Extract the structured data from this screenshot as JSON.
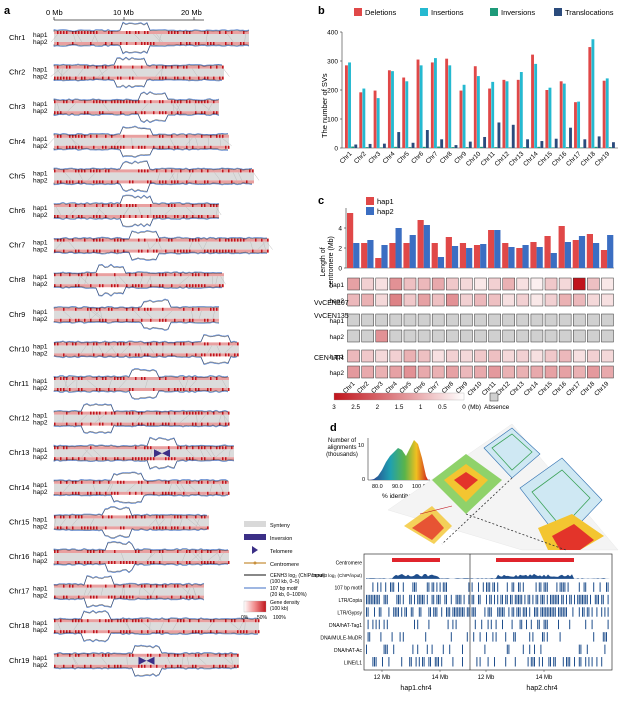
{
  "panel_a": {
    "label": "a",
    "scale": [
      "0 Mb",
      "10 Mb",
      "20 Mb"
    ],
    "hap_labels": [
      "hap1",
      "hap2"
    ],
    "chromosomes": [
      "Chr1",
      "Chr2",
      "Chr3",
      "Chr4",
      "Chr5",
      "Chr6",
      "Chr7",
      "Chr8",
      "Chr9",
      "Chr10",
      "Chr11",
      "Chr12",
      "Chr13",
      "Chr14",
      "Chr15",
      "Chr16",
      "Chr17",
      "Chr18",
      "Chr19"
    ],
    "legend": {
      "synteny": "Synteny",
      "inversion": "Inversion",
      "telomere": "Telomere",
      "centromere": "Centromere",
      "chip": "CENH3 log₂ (ChIP/input) (100 kb, 0–5)",
      "motif": "107 bp motif (20 kb, 0–100%)",
      "gene_density": "Gene density (100 kb)",
      "gene_ticks": [
        "0%",
        "50%",
        "100%"
      ]
    },
    "colors": {
      "synteny": "#d9d9d9",
      "inversion": "#3b2f86",
      "gene_low": "#ffffff",
      "gene_high": "#c0141c",
      "chip": "#111111",
      "motif": "#3f6fc4"
    }
  },
  "panel_b": {
    "label": "b",
    "chart_data": {
      "type": "bar",
      "ylabel": "The number of SVs",
      "ylim": [
        0,
        400
      ],
      "yticks": [
        "0",
        "100",
        "200",
        "300",
        "400"
      ],
      "categories": [
        "Chr1",
        "Chr2",
        "Chr3",
        "Chr4",
        "Chr5",
        "Chr6",
        "Chr7",
        "Chr8",
        "Chr9",
        "Chr10",
        "Chr11",
        "Chr12",
        "Chr13",
        "Chr14",
        "Chr15",
        "Chr16",
        "Chr17",
        "Chr18",
        "Chr19"
      ],
      "series": [
        {
          "name": "Deletions",
          "color": "#e04848",
          "values": [
            285,
            192,
            198,
            268,
            243,
            305,
            295,
            308,
            198,
            282,
            205,
            235,
            235,
            322,
            200,
            230,
            158,
            348,
            232
          ]
        },
        {
          "name": "Insertions",
          "color": "#25b9d0",
          "values": [
            295,
            205,
            172,
            265,
            230,
            285,
            310,
            285,
            218,
            248,
            228,
            230,
            262,
            290,
            208,
            222,
            160,
            375,
            240
          ]
        },
        {
          "name": "Inversions",
          "color": "#1d9a79",
          "values": [
            5,
            3,
            2,
            4,
            3,
            4,
            5,
            3,
            3,
            4,
            3,
            2,
            3,
            4,
            2,
            3,
            2,
            4,
            3
          ]
        },
        {
          "name": "Translocations",
          "color": "#2b4b7c",
          "values": [
            12,
            14,
            15,
            55,
            18,
            62,
            30,
            10,
            22,
            38,
            88,
            80,
            30,
            24,
            32,
            70,
            30,
            40,
            20
          ]
        }
      ]
    }
  },
  "panel_c": {
    "label": "c",
    "chart_data": {
      "type": "bar",
      "ylabel": "Length of centromere (Mb)",
      "ylim": [
        0,
        6
      ],
      "yticks": [
        "0",
        "2",
        "4"
      ],
      "categories": [
        "Chr1",
        "Chr2",
        "Chr3",
        "Chr4",
        "Chr5",
        "Chr6",
        "Chr7",
        "Chr8",
        "Chr9",
        "Chr10",
        "Chr11",
        "Chr12",
        "Chr13",
        "Chr14",
        "Chr15",
        "Chr16",
        "Chr17",
        "Chr18",
        "Chr19"
      ],
      "series": [
        {
          "name": "hap1",
          "color": "#e04848",
          "values": [
            5.5,
            2.5,
            1.0,
            2.5,
            2.5,
            4.8,
            2.5,
            3.1,
            2.5,
            2.3,
            3.8,
            2.5,
            2.0,
            2.6,
            3.2,
            4.2,
            2.8,
            3.4,
            1.8
          ]
        },
        {
          "name": "hap2",
          "color": "#3b6ec2",
          "values": [
            2.5,
            2.8,
            2.3,
            4.0,
            3.3,
            4.3,
            1.1,
            2.2,
            2.0,
            2.4,
            3.8,
            2.1,
            2.3,
            2.1,
            1.5,
            2.6,
            3.2,
            2.5,
            3.3
          ]
        }
      ]
    },
    "heatmap": {
      "type": "heatmap",
      "rows": [
        {
          "group": "VvCEN107",
          "hap": "hap1",
          "values": [
            1.2,
            0.6,
            0.4,
            1.4,
            0.8,
            0.9,
            1.1,
            0.7,
            0.5,
            0.3,
            0.6,
            1.0,
            0.4,
            0.2,
            0.7,
            0.5,
            3.0,
            0.8,
            0.3
          ]
        },
        {
          "group": "VvCEN107",
          "hap": "hap2",
          "values": [
            0.9,
            1.0,
            0.5,
            1.6,
            0.7,
            1.2,
            0.8,
            1.4,
            0.6,
            0.9,
            0.8,
            0.4,
            0.6,
            0.3,
            0.6,
            1.0,
            0.9,
            0.5,
            0.4
          ]
        },
        {
          "group": "VvCEN135",
          "hap": "hap1",
          "values": [
            null,
            null,
            null,
            null,
            null,
            null,
            null,
            null,
            null,
            null,
            null,
            null,
            null,
            null,
            null,
            null,
            null,
            null,
            null
          ]
        },
        {
          "group": "VvCEN135",
          "hap": "hap2",
          "values": [
            null,
            null,
            1.4,
            null,
            null,
            null,
            null,
            null,
            null,
            null,
            null,
            null,
            null,
            null,
            null,
            null,
            null,
            null,
            null
          ]
        },
        {
          "group": "CEN-LTR",
          "hap": "hap1",
          "values": [
            0.9,
            0.7,
            0.5,
            0.6,
            1.0,
            0.8,
            0.4,
            0.6,
            0.5,
            0.7,
            0.8,
            0.5,
            0.6,
            0.4,
            0.7,
            0.9,
            0.4,
            0.6,
            0.5
          ]
        },
        {
          "group": "CEN-LTR",
          "hap": "hap2",
          "values": [
            1.3,
            1.1,
            1.0,
            1.2,
            1.4,
            1.1,
            1.0,
            1.2,
            0.9,
            1.1,
            1.3,
            1.0,
            1.0,
            1.1,
            1.2,
            1.2,
            1.0,
            1.3,
            1.1
          ]
        }
      ],
      "groups": [
        "VvCEN107",
        "VvCEN135",
        "CEN-LTR"
      ],
      "scale_ticks": [
        "3",
        "2.5",
        "2",
        "1.5",
        "1",
        "0.5",
        "0"
      ],
      "scale_unit": "(Mb)",
      "absence_label": "Absence",
      "absence_color": "#d0d0d0"
    }
  },
  "panel_d": {
    "label": "d",
    "histogram": {
      "ylabel": "Number of alignments (thousands)",
      "yticks": [
        "0",
        "10"
      ],
      "xlabel": "% identity",
      "xticks": [
        "80.0",
        "90.0",
        "100.0"
      ]
    },
    "tracks": [
      "Centromere",
      "CENH3 log₂ (ChIP/input)",
      "107 bp motif",
      "LTR/Copia",
      "LTR/Gypsy",
      "DNA/hAT-Tag1",
      "DNA/MULE-MuDR",
      "DNA/hAT-Ac",
      "LINE/L1"
    ],
    "x_ticks_left": [
      "12 Mb",
      "14 Mb"
    ],
    "x_ticks_right": [
      "12 Mb",
      "14 Mb"
    ],
    "axis_left": "hap1.chr4",
    "axis_right": "hap2.chr4",
    "colors": {
      "centromere": "#e0242c",
      "track": "#1f4e8c"
    }
  }
}
